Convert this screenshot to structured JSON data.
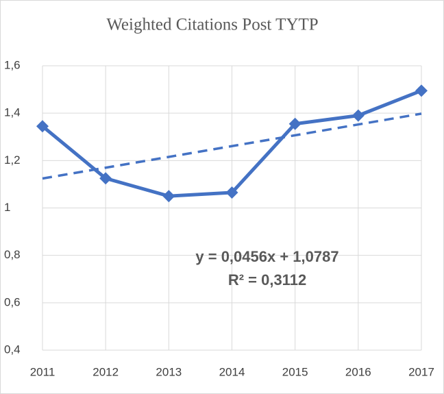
{
  "chart_data": {
    "type": "line",
    "title": "Weighted Citations  Post TYTP",
    "x": [
      2011,
      2012,
      2013,
      2014,
      2015,
      2016,
      2017
    ],
    "xlim": [
      2011,
      2017
    ],
    "xticks": [
      2011,
      2012,
      2013,
      2014,
      2015,
      2016,
      2017
    ],
    "series": [
      {
        "color": "#4472c4",
        "values": [
          1.345,
          1.125,
          1.05,
          1.065,
          1.355,
          1.39,
          1.495
        ]
      }
    ],
    "trendline": {
      "slope": 0.0456,
      "intercept": 1.0787,
      "color": "#4472c4"
    },
    "annotations": [
      "y = 0,0456x + 1,0787",
      "R² = 0,3112"
    ],
    "ylim": [
      0.4,
      1.6
    ],
    "yticks": [
      {
        "value": 0.4,
        "label": "0,4"
      },
      {
        "value": 0.6,
        "label": "0,6"
      },
      {
        "value": 0.8,
        "label": "0,8"
      },
      1,
      {
        "value": 1.2,
        "label": "1,2"
      },
      {
        "value": 1.4,
        "label": "1,4"
      },
      {
        "value": 1.6,
        "label": "1,6"
      }
    ],
    "grid": true
  }
}
